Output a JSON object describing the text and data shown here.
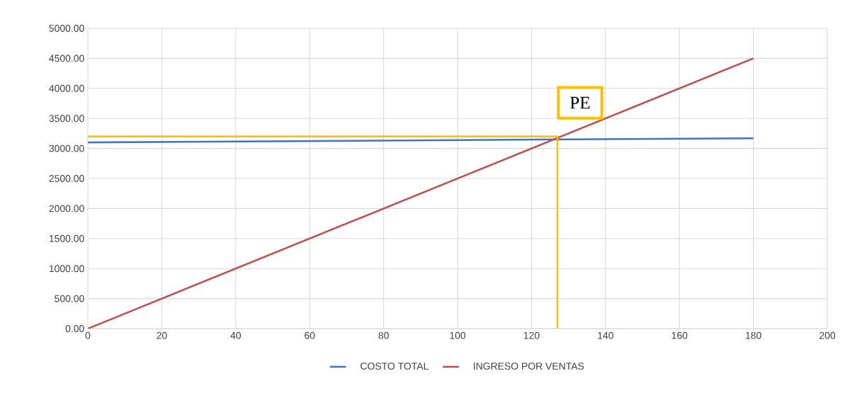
{
  "chart_data": {
    "type": "line",
    "xlim": [
      0,
      200
    ],
    "ylim": [
      0,
      5000
    ],
    "xticks": [
      0,
      20,
      40,
      60,
      80,
      100,
      120,
      140,
      160,
      180,
      200
    ],
    "yticks": [
      {
        "value": 0,
        "label": "0.00"
      },
      {
        "value": 500,
        "label": "500.00"
      },
      {
        "value": 1000,
        "label": "1000.00"
      },
      {
        "value": 1500,
        "label": "1500.00"
      },
      {
        "value": 2000,
        "label": "2000.00"
      },
      {
        "value": 2500,
        "label": "2500.00"
      },
      {
        "value": 3000,
        "label": "3000.00"
      },
      {
        "value": 3500,
        "label": "3500.00"
      },
      {
        "value": 4000,
        "label": "4000.00"
      },
      {
        "value": 4500,
        "label": "4500.00"
      },
      {
        "value": 5000,
        "label": "5000.00"
      }
    ],
    "grid": true,
    "legend": "bottom",
    "marker": "none",
    "line_style": "solid",
    "series": [
      {
        "name": "COSTO TOTAL",
        "color": "#4472c4",
        "x": [
          0,
          180
        ],
        "values": [
          3100,
          3170
        ]
      },
      {
        "name": "INGRESO POR VENTAS",
        "color": "#c0504d",
        "x": [
          0,
          180
        ],
        "values": [
          0,
          4500
        ]
      },
      {
        "color": "#ffc000",
        "x": [
          0,
          127,
          127
        ],
        "values": [
          3200,
          3200,
          0
        ]
      }
    ],
    "annotations": [
      {
        "text": "PE",
        "x": 127,
        "y": 3200
      }
    ]
  }
}
